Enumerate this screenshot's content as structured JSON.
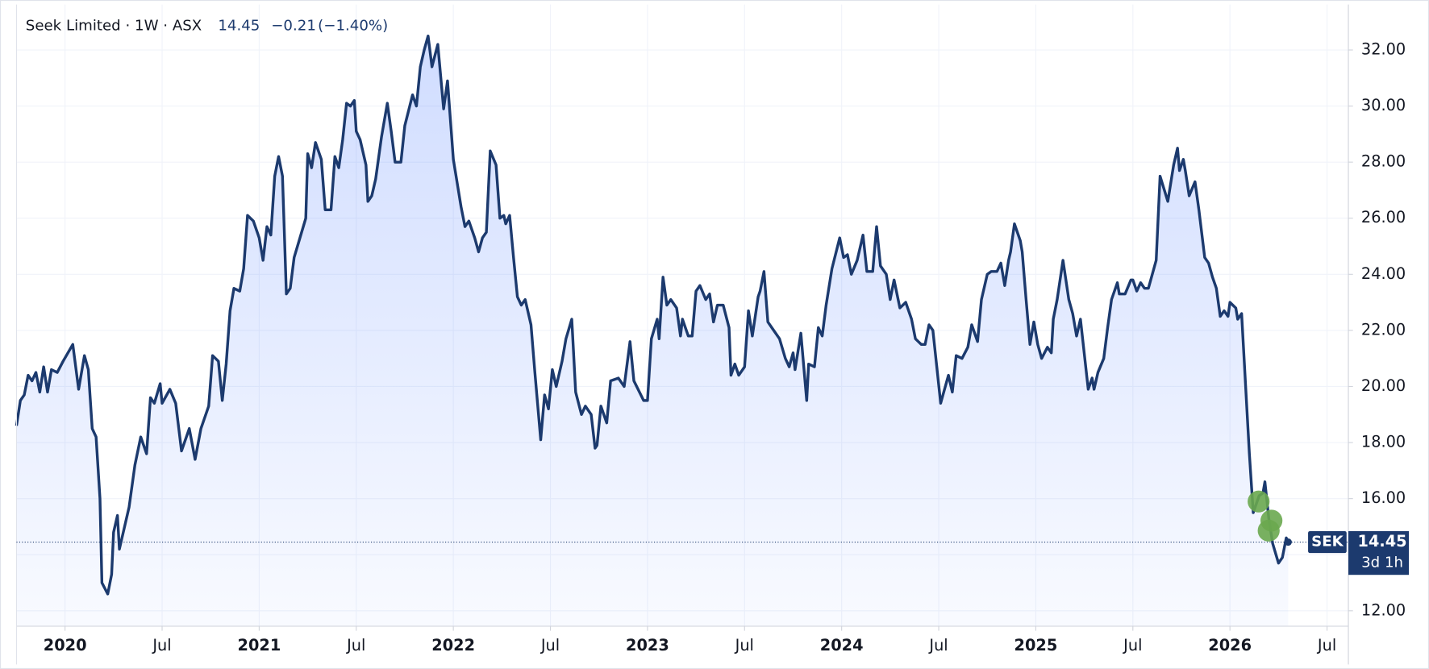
{
  "chart_data": {
    "type": "area",
    "title": "Seek Limited · 1W · ASX",
    "last_price": 14.45,
    "change": "−0.21",
    "change_pct": "(−1.40%)",
    "symbol_label": "SEK",
    "countdown": "3d 1h",
    "color": "#1c3a6e",
    "fill_color": "#2962ff",
    "grid": true,
    "xlim": [
      2019.75,
      2026.61
    ],
    "ylim": [
      11.45,
      33.62
    ],
    "xticks": [
      {
        "value": 2020,
        "label": "2020"
      },
      {
        "value": 2020.5,
        "label": "Jul"
      },
      {
        "value": 2021,
        "label": "2021"
      },
      {
        "value": 2021.5,
        "label": "Jul"
      },
      {
        "value": 2022,
        "label": "2022"
      },
      {
        "value": 2022.5,
        "label": "Jul"
      },
      {
        "value": 2023,
        "label": "2023"
      },
      {
        "value": 2023.5,
        "label": "Jul"
      },
      {
        "value": 2024,
        "label": "2024"
      },
      {
        "value": 2024.5,
        "label": "Jul"
      },
      {
        "value": 2025,
        "label": "2025"
      },
      {
        "value": 2025.5,
        "label": "Jul"
      },
      {
        "value": 2026,
        "label": "2026"
      },
      {
        "value": 2026.5,
        "label": "Jul"
      }
    ],
    "yticks": [
      {
        "value": 12,
        "label": "12.00"
      },
      {
        "value": 14,
        "label": "14.00"
      },
      {
        "value": 16,
        "label": "16.00"
      },
      {
        "value": 18,
        "label": "18.00"
      },
      {
        "value": 20,
        "label": "20.00"
      },
      {
        "value": 22,
        "label": "22.00"
      },
      {
        "value": 24,
        "label": "24.00"
      },
      {
        "value": 26,
        "label": "26.00"
      },
      {
        "value": 28,
        "label": "28.00"
      },
      {
        "value": 30,
        "label": "30.00"
      },
      {
        "value": 32,
        "label": "32.00"
      }
    ],
    "x": [
      2019.75,
      2019.77,
      2019.79,
      2019.81,
      2019.83,
      2019.85,
      2019.87,
      2019.89,
      2019.91,
      2019.93,
      2019.96,
      2019.99,
      2020.04,
      2020.07,
      2020.1,
      2020.12,
      2020.14,
      2020.16,
      2020.18,
      2020.19,
      2020.22,
      2020.24,
      2020.25,
      2020.27,
      2020.28,
      2020.31,
      2020.33,
      2020.36,
      2020.39,
      2020.42,
      2020.44,
      2020.46,
      2020.49,
      2020.5,
      2020.54,
      2020.57,
      2020.6,
      2020.64,
      2020.67,
      2020.7,
      2020.74,
      2020.76,
      2020.79,
      2020.81,
      2020.83,
      2020.85,
      2020.87,
      2020.9,
      2020.92,
      2020.94,
      2020.97,
      2021.0,
      2021.02,
      2021.04,
      2021.06,
      2021.08,
      2021.1,
      2021.12,
      2021.14,
      2021.16,
      2021.18,
      2021.21,
      2021.24,
      2021.25,
      2021.27,
      2021.29,
      2021.32,
      2021.34,
      2021.37,
      2021.39,
      2021.41,
      2021.43,
      2021.45,
      2021.47,
      2021.49,
      2021.5,
      2021.52,
      2021.55,
      2021.56,
      2021.58,
      2021.6,
      2021.63,
      2021.66,
      2021.68,
      2021.7,
      2021.73,
      2021.75,
      2021.79,
      2021.81,
      2021.83,
      2021.85,
      2021.87,
      2021.89,
      2021.92,
      2021.95,
      2021.97,
      2022.0,
      2022.04,
      2022.06,
      2022.08,
      2022.11,
      2022.13,
      2022.15,
      2022.17,
      2022.19,
      2022.22,
      2022.24,
      2022.26,
      2022.27,
      2022.29,
      2022.31,
      2022.33,
      2022.35,
      2022.37,
      2022.4,
      2022.42,
      2022.45,
      2022.47,
      2022.49,
      2022.51,
      2022.53,
      2022.56,
      2022.58,
      2022.61,
      2022.63,
      2022.66,
      2022.68,
      2022.71,
      2022.73,
      2022.74,
      2022.76,
      2022.79,
      2022.81,
      2022.85,
      2022.88,
      2022.91,
      2022.93,
      2022.98,
      2023.0,
      2023.02,
      2023.05,
      2023.06,
      2023.08,
      2023.1,
      2023.12,
      2023.15,
      2023.17,
      2023.18,
      2023.21,
      2023.23,
      2023.25,
      2023.27,
      2023.3,
      2023.32,
      2023.34,
      2023.36,
      2023.39,
      2023.42,
      2023.43,
      2023.45,
      2023.47,
      2023.5,
      2023.52,
      2023.54,
      2023.57,
      2023.58,
      2023.6,
      2023.62,
      2023.65,
      2023.68,
      2023.71,
      2023.73,
      2023.75,
      2023.76,
      2023.79,
      2023.82,
      2023.83,
      2023.86,
      2023.88,
      2023.9,
      2023.92,
      2023.95,
      2023.99,
      2024.01,
      2024.03,
      2024.05,
      2024.08,
      2024.11,
      2024.13,
      2024.16,
      2024.18,
      2024.2,
      2024.23,
      2024.25,
      2024.27,
      2024.3,
      2024.33,
      2024.36,
      2024.38,
      2024.41,
      2024.43,
      2024.45,
      2024.47,
      2024.51,
      2024.55,
      2024.57,
      2024.59,
      2024.62,
      2024.65,
      2024.67,
      2024.7,
      2024.72,
      2024.75,
      2024.77,
      2024.8,
      2024.82,
      2024.84,
      2024.86,
      2024.87,
      2024.89,
      2024.92,
      2024.93,
      2024.95,
      2024.97,
      2024.99,
      2025.01,
      2025.03,
      2025.06,
      2025.08,
      2025.09,
      2025.11,
      2025.14,
      2025.17,
      2025.19,
      2025.21,
      2025.23,
      2025.27,
      2025.29,
      2025.3,
      2025.32,
      2025.35,
      2025.37,
      2025.39,
      2025.42,
      2025.43,
      2025.46,
      2025.49,
      2025.5,
      2025.52,
      2025.54,
      2025.56,
      2025.58,
      2025.6,
      2025.62,
      2025.64,
      2025.68,
      2025.71,
      2025.73,
      2025.74,
      2025.76,
      2025.77,
      2025.79,
      2025.82,
      2025.84,
      2025.87,
      2025.89,
      2025.91,
      2025.93,
      2025.95,
      2025.97,
      2025.99,
      2026.0,
      2026.03,
      2026.04,
      2026.06,
      2026.08,
      2026.1,
      2026.12,
      2026.15,
      2026.17,
      2026.18,
      2026.2,
      2026.22,
      2026.25,
      2026.27,
      2026.29,
      2026.3
    ],
    "values": [
      18.6,
      19.5,
      19.7,
      20.4,
      20.2,
      20.5,
      19.8,
      20.7,
      19.8,
      20.6,
      20.5,
      20.9,
      21.5,
      19.9,
      21.1,
      20.6,
      18.5,
      18.2,
      16.0,
      13.0,
      12.6,
      13.3,
      14.8,
      15.4,
      14.2,
      15.1,
      15.7,
      17.2,
      18.2,
      17.6,
      19.6,
      19.4,
      20.1,
      19.4,
      19.9,
      19.4,
      17.7,
      18.5,
      17.4,
      18.5,
      19.3,
      21.1,
      20.9,
      19.5,
      20.8,
      22.7,
      23.5,
      23.4,
      24.2,
      26.1,
      25.9,
      25.3,
      24.5,
      25.7,
      25.4,
      27.5,
      28.2,
      27.5,
      23.3,
      23.5,
      24.6,
      25.3,
      26.0,
      28.3,
      27.8,
      28.7,
      28.1,
      26.3,
      26.3,
      28.2,
      27.8,
      28.8,
      30.1,
      30.0,
      30.2,
      29.1,
      28.8,
      27.9,
      26.6,
      26.8,
      27.4,
      28.9,
      30.1,
      29.1,
      28.0,
      28.0,
      29.3,
      30.4,
      30.0,
      31.4,
      32.0,
      32.5,
      31.4,
      32.2,
      29.9,
      30.9,
      28.1,
      26.4,
      25.7,
      25.9,
      25.3,
      24.8,
      25.3,
      25.5,
      28.4,
      27.9,
      26.0,
      26.1,
      25.8,
      26.1,
      24.6,
      23.2,
      22.9,
      23.1,
      22.2,
      20.5,
      18.1,
      19.7,
      19.2,
      20.6,
      20.0,
      20.9,
      21.7,
      22.4,
      19.8,
      19.0,
      19.3,
      19.0,
      17.8,
      17.9,
      19.3,
      18.7,
      20.2,
      20.3,
      20.0,
      21.6,
      20.2,
      19.5,
      19.5,
      21.7,
      22.4,
      21.7,
      23.9,
      22.9,
      23.1,
      22.8,
      21.8,
      22.4,
      21.8,
      21.8,
      23.4,
      23.6,
      23.1,
      23.3,
      22.3,
      22.9,
      22.9,
      22.1,
      20.4,
      20.8,
      20.4,
      20.7,
      22.7,
      21.8,
      23.2,
      23.4,
      24.1,
      22.3,
      22.0,
      21.7,
      21.0,
      20.7,
      21.2,
      20.6,
      21.9,
      19.5,
      20.8,
      20.7,
      22.1,
      21.8,
      22.9,
      24.2,
      25.3,
      24.6,
      24.7,
      24.0,
      24.5,
      25.4,
      24.1,
      24.1,
      25.7,
      24.3,
      24.0,
      23.1,
      23.8,
      22.8,
      23.0,
      22.4,
      21.7,
      21.5,
      21.5,
      22.2,
      22.0,
      19.4,
      20.4,
      19.8,
      21.1,
      21.0,
      21.4,
      22.2,
      21.6,
      23.1,
      24.0,
      24.1,
      24.1,
      24.4,
      23.6,
      24.5,
      24.8,
      25.8,
      25.2,
      24.8,
      23.1,
      21.5,
      22.3,
      21.5,
      21.0,
      21.4,
      21.2,
      22.4,
      23.1,
      24.5,
      23.1,
      22.6,
      21.8,
      22.4,
      19.9,
      20.3,
      19.9,
      20.5,
      21.0,
      22.1,
      23.1,
      23.7,
      23.3,
      23.3,
      23.8,
      23.8,
      23.4,
      23.7,
      23.5,
      23.5,
      24.0,
      24.5,
      27.5,
      26.6,
      27.9,
      28.5,
      27.7,
      28.1,
      27.7,
      26.8,
      27.3,
      26.3,
      24.6,
      24.4,
      23.9,
      23.5,
      22.5,
      22.7,
      22.5,
      23.0,
      22.8,
      22.4,
      22.6,
      20.1,
      17.6,
      15.5,
      16.1,
      16.2,
      16.6,
      15.3,
      14.4,
      13.7,
      13.9,
      14.6,
      14.45
    ]
  }
}
